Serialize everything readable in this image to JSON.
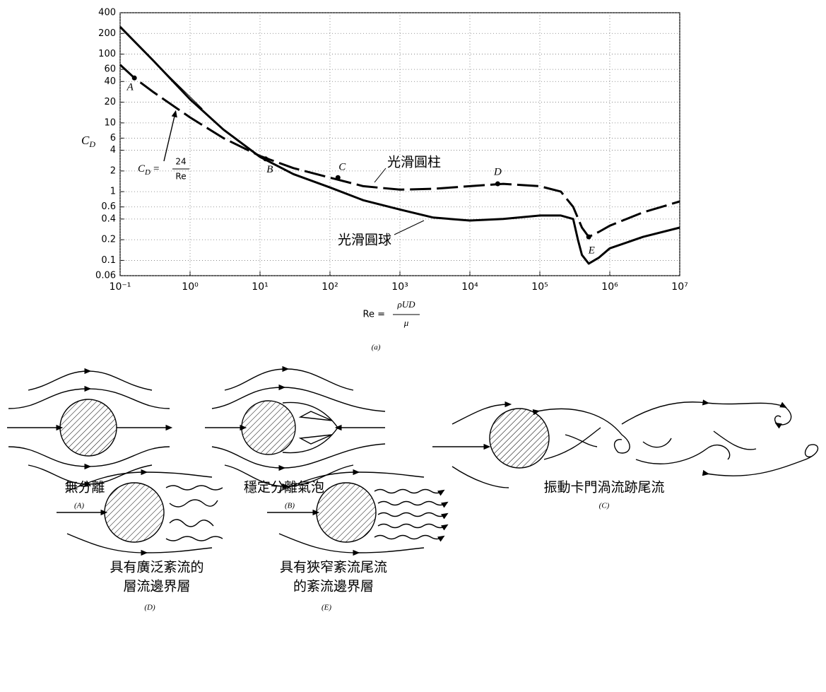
{
  "chart_data": {
    "type": "line",
    "xscale": "log",
    "yscale": "log",
    "ylabel": {
      "main": "C",
      "sub": "D"
    },
    "xlabel": {
      "lhs": "Re =",
      "num": "ρUD",
      "den": "μ"
    },
    "caption": "(a)",
    "xlim": [
      0.1,
      10000000
    ],
    "ylim": [
      0.06,
      400
    ],
    "xticks": [
      {
        "value": 0.1,
        "label": "10⁻¹"
      },
      {
        "value": 1,
        "label": "10⁰"
      },
      {
        "value": 10,
        "label": "10¹"
      },
      {
        "value": 100,
        "label": "10²"
      },
      {
        "value": 1000,
        "label": "10³"
      },
      {
        "value": 10000,
        "label": "10⁴"
      },
      {
        "value": 100000,
        "label": "10⁵"
      },
      {
        "value": 1000000,
        "label": "10⁶"
      },
      {
        "value": 10000000,
        "label": "10⁷"
      }
    ],
    "yticks": [
      0.06,
      0.1,
      0.2,
      0.4,
      0.6,
      1,
      2,
      4,
      6,
      10,
      20,
      40,
      60,
      100,
      200,
      400
    ],
    "grid": true,
    "series": [
      {
        "name": "光滑圓柱",
        "color": "#000000",
        "style": "dashed",
        "x": [
          0.1,
          0.16,
          0.3,
          1,
          3,
          10,
          30,
          100,
          300,
          1000,
          3000,
          10000,
          30000,
          100000,
          200000,
          300000,
          400000,
          500000,
          700000,
          1000000,
          3000000,
          10000000
        ],
        "values": [
          70,
          45,
          28,
          12,
          6,
          3.3,
          2.2,
          1.6,
          1.2,
          1.07,
          1.1,
          1.2,
          1.3,
          1.2,
          1.0,
          0.6,
          0.3,
          0.22,
          0.26,
          0.32,
          0.5,
          0.72
        ]
      },
      {
        "name": "光滑圓球",
        "color": "#000000",
        "style": "solid",
        "x": [
          0.1,
          0.3,
          1,
          3,
          10,
          30,
          100,
          300,
          1000,
          3000,
          10000,
          30000,
          100000,
          200000,
          300000,
          350000,
          400000,
          500000,
          700000,
          1000000,
          3000000,
          10000000
        ],
        "values": [
          250,
          80,
          22,
          8,
          3.2,
          1.8,
          1.15,
          0.75,
          0.55,
          0.42,
          0.38,
          0.4,
          0.45,
          0.45,
          0.4,
          0.2,
          0.12,
          0.09,
          0.11,
          0.15,
          0.22,
          0.3
        ]
      },
      {
        "color": "#000000",
        "style": "thin",
        "x": [
          0.15,
          1.5
        ],
        "values": [
          160,
          16
        ]
      }
    ],
    "formula": {
      "lhs": "C",
      "sub": "D",
      "eq": "=",
      "num": "24",
      "den": "Re"
    },
    "points": [
      {
        "label": "A",
        "x": 0.16,
        "y": 45
      },
      {
        "label": "B",
        "x": 12,
        "y": 3
      },
      {
        "label": "C",
        "x": 130,
        "y": 1.6
      },
      {
        "label": "D",
        "x": 25000,
        "y": 1.3
      },
      {
        "label": "E",
        "x": 500000,
        "y": 0.22
      }
    ]
  },
  "diagrams": [
    {
      "title": [
        "無分離"
      ],
      "tag": "(A)"
    },
    {
      "title": [
        "穩定分離氣泡"
      ],
      "tag": "(B)"
    },
    {
      "title": [
        "振動卡門渦流跡尾流"
      ],
      "tag": "(C)"
    },
    {
      "title": [
        "具有廣泛紊流的",
        "層流邊界層"
      ],
      "tag": "(D)"
    },
    {
      "title": [
        "具有狹窄紊流尾流",
        "的紊流邊界層"
      ],
      "tag": "(E)"
    }
  ]
}
